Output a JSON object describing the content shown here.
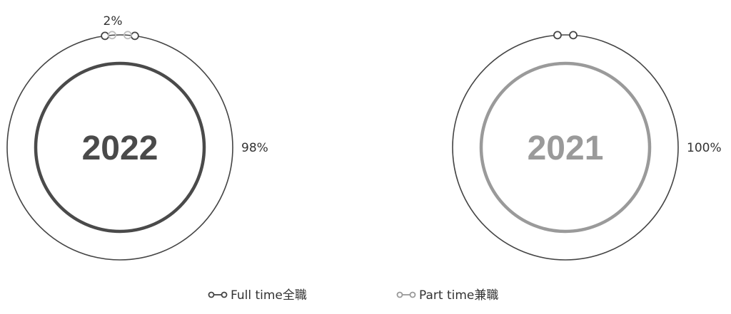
{
  "chart_data": {
    "type": "pie",
    "legend": {
      "position": "bottom",
      "entries": [
        {
          "label": "Full time全職",
          "color": "#444444"
        },
        {
          "label": "Part time兼職",
          "color": "#999999"
        }
      ]
    },
    "charts": [
      {
        "year": "2022",
        "year_color": "#4a4a4a",
        "inner_ring_color": "#4a4a4a",
        "series": [
          {
            "name": "Full time全職",
            "value": 98,
            "label": "98%"
          },
          {
            "name": "Part time兼職",
            "value": 2,
            "label": "2%"
          }
        ]
      },
      {
        "year": "2021",
        "year_color": "#9a9a9a",
        "inner_ring_color": "#9a9a9a",
        "series": [
          {
            "name": "Full time全職",
            "value": 100,
            "label": "100%"
          },
          {
            "name": "Part time兼職",
            "value": 0,
            "label": ""
          }
        ]
      }
    ]
  }
}
